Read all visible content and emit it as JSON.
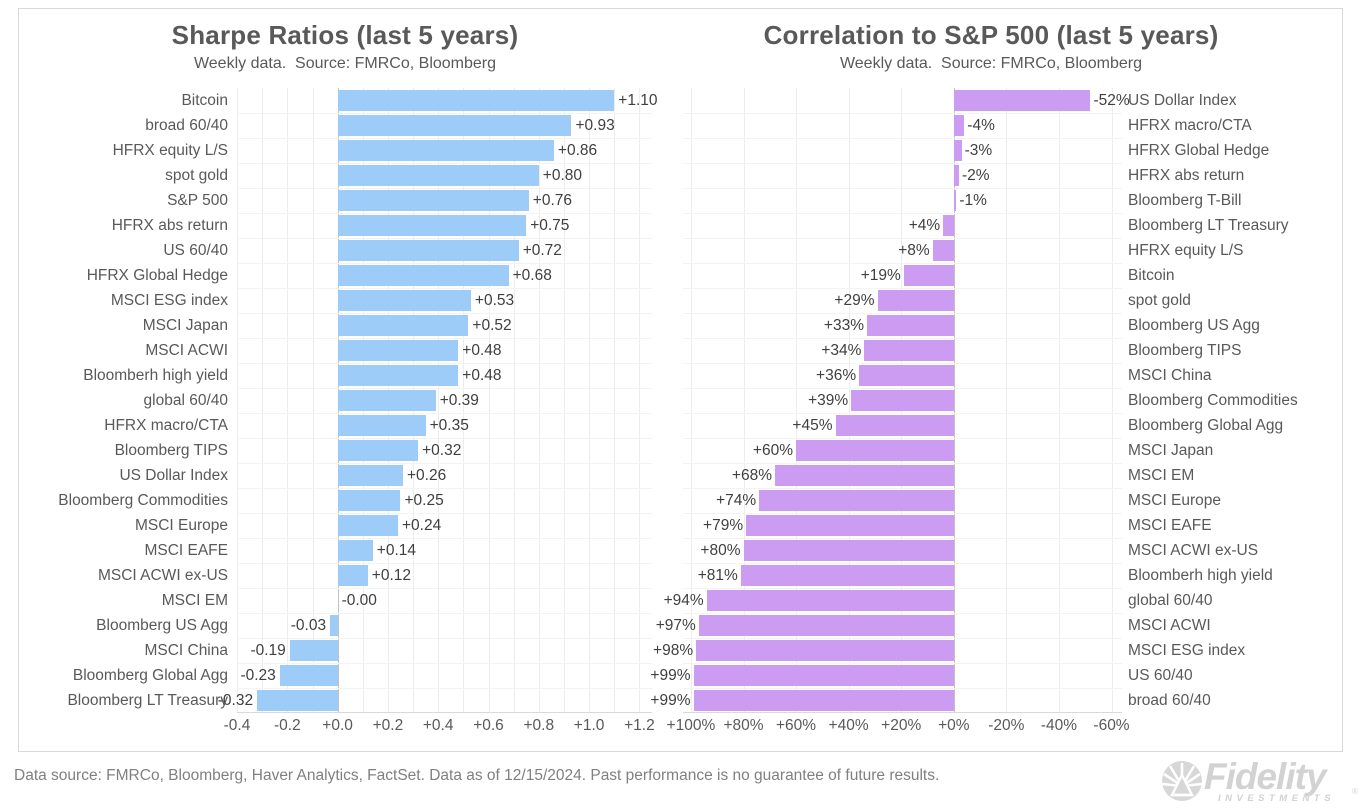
{
  "footer": {
    "text": "Data source: FMRCo, Bloomberg, Haver Analytics, FactSet. Data as of 12/15/2024. Past performance is no guarantee of future results."
  },
  "logo": {
    "brand": "Fidelity",
    "registered": "®",
    "sub": "INVESTMENTS",
    "color": "#d2d2d2"
  },
  "chart_data": [
    {
      "type": "bar",
      "orientation": "horizontal",
      "title": "Sharpe Ratios (last 5 years)",
      "subtitle": "Weekly data.  Source: FMRCo, Bloomberg",
      "bar_color": "#9dccf8",
      "grid": true,
      "axis": {
        "min": -0.4,
        "max": 1.25,
        "reversed": false,
        "grid_min": -0.4,
        "grid_max": 1.2,
        "grid_step": 0.1
      },
      "x_ticks": [
        {
          "label": "-0.4",
          "value": -0.4
        },
        {
          "label": "-0.2",
          "value": -0.2
        },
        {
          "label": "+0.0",
          "value": 0.0
        },
        {
          "label": "+0.2",
          "value": 0.2
        },
        {
          "label": "+0.4",
          "value": 0.4
        },
        {
          "label": "+0.6",
          "value": 0.6
        },
        {
          "label": "+0.8",
          "value": 0.8
        },
        {
          "label": "+1.0",
          "value": 1.0
        },
        {
          "label": "+1.2",
          "value": 1.2
        }
      ],
      "rows": [
        {
          "category": "Bitcoin",
          "value": 1.1,
          "label": "+1.10"
        },
        {
          "category": "broad 60/40",
          "value": 0.93,
          "label": "+0.93"
        },
        {
          "category": "HFRX equity L/S",
          "value": 0.86,
          "label": "+0.86"
        },
        {
          "category": "spot gold",
          "value": 0.8,
          "label": "+0.80"
        },
        {
          "category": "S&P 500",
          "value": 0.76,
          "label": "+0.76"
        },
        {
          "category": "HFRX abs return",
          "value": 0.75,
          "label": "+0.75"
        },
        {
          "category": "US 60/40",
          "value": 0.72,
          "label": "+0.72"
        },
        {
          "category": "HFRX Global Hedge",
          "value": 0.68,
          "label": "+0.68"
        },
        {
          "category": "MSCI ESG index",
          "value": 0.53,
          "label": "+0.53"
        },
        {
          "category": "MSCI Japan",
          "value": 0.52,
          "label": "+0.52"
        },
        {
          "category": "MSCI ACWI",
          "value": 0.48,
          "label": "+0.48"
        },
        {
          "category": "Bloomberh high yield",
          "value": 0.48,
          "label": "+0.48"
        },
        {
          "category": "global 60/40",
          "value": 0.39,
          "label": "+0.39"
        },
        {
          "category": "HFRX macro/CTA",
          "value": 0.35,
          "label": "+0.35"
        },
        {
          "category": "Bloomberg TIPS",
          "value": 0.32,
          "label": "+0.32"
        },
        {
          "category": "US Dollar Index",
          "value": 0.26,
          "label": "+0.26"
        },
        {
          "category": "Bloomberg Commodities",
          "value": 0.25,
          "label": "+0.25"
        },
        {
          "category": "MSCI Europe",
          "value": 0.24,
          "label": "+0.24"
        },
        {
          "category": "MSCI EAFE",
          "value": 0.14,
          "label": "+0.14"
        },
        {
          "category": "MSCI ACWI ex-US",
          "value": 0.12,
          "label": "+0.12"
        },
        {
          "category": "MSCI EM",
          "value": 0.0,
          "label": "-0.00"
        },
        {
          "category": "Bloomberg US Agg",
          "value": -0.03,
          "label": "-0.03"
        },
        {
          "category": "MSCI China",
          "value": -0.19,
          "label": "-0.19"
        },
        {
          "category": "Bloomberg Global Agg",
          "value": -0.23,
          "label": "-0.23"
        },
        {
          "category": "Bloomberg LT Treasury",
          "value": -0.32,
          "label": "-0.32"
        }
      ]
    },
    {
      "type": "bar",
      "orientation": "horizontal",
      "title": "Correlation to S&P 500 (last 5 years)",
      "subtitle": "Weekly data.  Source: FMRCo, Bloomberg",
      "bar_color": "#cc9bf2",
      "grid": true,
      "axis": {
        "min": -64,
        "max": 103,
        "reversed": true,
        "grid_min": -60,
        "grid_max": 100,
        "grid_step": 20
      },
      "x_ticks": [
        {
          "label": "+100%",
          "value": 100
        },
        {
          "label": "+80%",
          "value": 80
        },
        {
          "label": "+60%",
          "value": 60
        },
        {
          "label": "+40%",
          "value": 40
        },
        {
          "label": "+20%",
          "value": 20
        },
        {
          "label": "+0%",
          "value": 0
        },
        {
          "label": "-20%",
          "value": -20
        },
        {
          "label": "-40%",
          "value": -40
        },
        {
          "label": "-60%",
          "value": -60
        }
      ],
      "rows": [
        {
          "category": "US Dollar Index",
          "value": -52,
          "label": "-52%"
        },
        {
          "category": "HFRX macro/CTA",
          "value": -4,
          "label": "-4%"
        },
        {
          "category": "HFRX Global Hedge",
          "value": -3,
          "label": "-3%"
        },
        {
          "category": "HFRX abs return",
          "value": -2,
          "label": "-2%"
        },
        {
          "category": "Bloomberg T-Bill",
          "value": -1,
          "label": "-1%"
        },
        {
          "category": "Bloomberg LT Treasury",
          "value": 4,
          "label": "+4%"
        },
        {
          "category": "HFRX equity L/S",
          "value": 8,
          "label": "+8%"
        },
        {
          "category": "Bitcoin",
          "value": 19,
          "label": "+19%"
        },
        {
          "category": "spot gold",
          "value": 29,
          "label": "+29%"
        },
        {
          "category": "Bloomberg US Agg",
          "value": 33,
          "label": "+33%"
        },
        {
          "category": "Bloomberg TIPS",
          "value": 34,
          "label": "+34%"
        },
        {
          "category": "MSCI China",
          "value": 36,
          "label": "+36%"
        },
        {
          "category": "Bloomberg Commodities",
          "value": 39,
          "label": "+39%"
        },
        {
          "category": "Bloomberg Global Agg",
          "value": 45,
          "label": "+45%"
        },
        {
          "category": "MSCI Japan",
          "value": 60,
          "label": "+60%"
        },
        {
          "category": "MSCI EM",
          "value": 68,
          "label": "+68%"
        },
        {
          "category": "MSCI Europe",
          "value": 74,
          "label": "+74%"
        },
        {
          "category": "MSCI EAFE",
          "value": 79,
          "label": "+79%"
        },
        {
          "category": "MSCI ACWI ex-US",
          "value": 80,
          "label": "+80%"
        },
        {
          "category": "Bloomberh high yield",
          "value": 81,
          "label": "+81%"
        },
        {
          "category": "global 60/40",
          "value": 94,
          "label": "+94%"
        },
        {
          "category": "MSCI ACWI",
          "value": 97,
          "label": "+97%"
        },
        {
          "category": "MSCI ESG index",
          "value": 98,
          "label": "+98%"
        },
        {
          "category": "US 60/40",
          "value": 99,
          "label": "+99%"
        },
        {
          "category": "broad 60/40",
          "value": 99,
          "label": "+99%"
        }
      ]
    }
  ]
}
